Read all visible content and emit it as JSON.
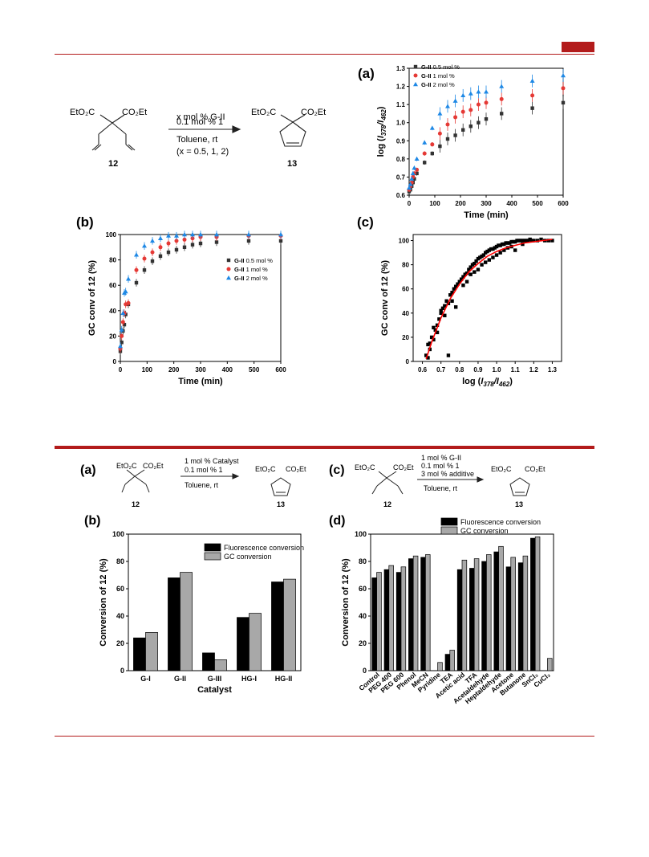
{
  "colors": {
    "rule": "#b31b1b",
    "tab": "#b31b1b",
    "black": "#000000",
    "grey": "#a8a8a8",
    "red": "#e53935",
    "blue": "#1e88e5",
    "dark": "#333333",
    "fit": "#ff0000"
  },
  "scheme1": {
    "reactant": "12",
    "product": "13",
    "lines": [
      "x mol % G-II",
      "0.1 mol % 1",
      "Toluene, rt",
      "(x = 0.5, 1, 2)"
    ],
    "sub_left": "EtO₂C",
    "sub_right": "CO₂Et"
  },
  "scheme2": {
    "panel_a": {
      "label": "(a)",
      "lines": [
        "1 mol % Catalyst",
        "0.1 mol % 1",
        "Toluene, rt"
      ],
      "reactant": "12",
      "product": "13"
    },
    "panel_c": {
      "label": "(c)",
      "lines": [
        "1 mol % G-II",
        "0.1 mol % 1",
        "3 mol % additive",
        "Toluene, rt"
      ],
      "reactant": "12",
      "product": "13"
    }
  },
  "chart_data": [
    {
      "id": "fig1a",
      "panel": "(a)",
      "type": "scatter",
      "xlabel": "Time (min)",
      "ylabel": "log (I378/I462)",
      "xlim": [
        0,
        600
      ],
      "ylim": [
        0.6,
        1.3
      ],
      "xticks": [
        0,
        100,
        200,
        300,
        400,
        500,
        600
      ],
      "yticks": [
        0.6,
        0.7,
        0.8,
        0.9,
        1.0,
        1.1,
        1.2,
        1.3
      ],
      "legend_position": "top-left",
      "series": [
        {
          "name": "G-II 0.5 mol %",
          "marker": "square",
          "color": "#333333",
          "x": [
            0,
            5,
            10,
            15,
            20,
            30,
            60,
            90,
            120,
            150,
            180,
            210,
            240,
            270,
            300,
            360,
            480,
            600
          ],
          "y": [
            0.62,
            0.63,
            0.65,
            0.67,
            0.69,
            0.72,
            0.78,
            0.83,
            0.87,
            0.91,
            0.93,
            0.96,
            0.98,
            1.0,
            1.02,
            1.05,
            1.08,
            1.11
          ]
        },
        {
          "name": "G-II 1 mol %",
          "marker": "circle",
          "color": "#e53935",
          "x": [
            0,
            5,
            10,
            15,
            20,
            30,
            60,
            90,
            120,
            150,
            180,
            210,
            240,
            270,
            300,
            360,
            480,
            600
          ],
          "y": [
            0.63,
            0.65,
            0.67,
            0.7,
            0.72,
            0.74,
            0.83,
            0.88,
            0.94,
            0.99,
            1.03,
            1.06,
            1.07,
            1.1,
            1.11,
            1.13,
            1.15,
            1.19
          ]
        },
        {
          "name": "G-II 2 mol %",
          "marker": "triangle",
          "color": "#1e88e5",
          "x": [
            0,
            5,
            10,
            15,
            20,
            30,
            60,
            90,
            120,
            150,
            180,
            210,
            240,
            270,
            300,
            360,
            480,
            600
          ],
          "y": [
            0.64,
            0.66,
            0.69,
            0.72,
            0.75,
            0.8,
            0.89,
            0.97,
            1.05,
            1.09,
            1.12,
            1.15,
            1.16,
            1.17,
            1.17,
            1.2,
            1.23,
            1.26
          ]
        }
      ]
    },
    {
      "id": "fig1b",
      "panel": "(b)",
      "type": "scatter",
      "xlabel": "Time (min)",
      "ylabel": "GC conv of 12 (%)",
      "xlim": [
        0,
        600
      ],
      "ylim": [
        0,
        100
      ],
      "xticks": [
        0,
        100,
        200,
        300,
        400,
        500,
        600
      ],
      "yticks": [
        0,
        20,
        40,
        60,
        80,
        100
      ],
      "legend_position": "right",
      "series": [
        {
          "name": "G-II 0.5 mol %",
          "marker": "square",
          "color": "#333333",
          "x": [
            0,
            5,
            10,
            15,
            20,
            30,
            60,
            90,
            120,
            150,
            180,
            210,
            240,
            270,
            300,
            360,
            480,
            600
          ],
          "y": [
            8,
            15,
            24,
            29,
            37,
            45,
            62,
            72,
            79,
            83,
            86,
            88,
            90,
            92,
            93,
            94,
            95,
            95
          ]
        },
        {
          "name": "G-II 1 mol %",
          "marker": "circle",
          "color": "#e53935",
          "x": [
            0,
            5,
            10,
            15,
            20,
            30,
            60,
            90,
            120,
            150,
            180,
            210,
            240,
            270,
            300,
            360,
            480,
            600
          ],
          "y": [
            10,
            20,
            31,
            38,
            45,
            46,
            72,
            81,
            86,
            90,
            93,
            95,
            96,
            97,
            98,
            98,
            99,
            99
          ]
        },
        {
          "name": "G-II 2 mol %",
          "marker": "triangle",
          "color": "#1e88e5",
          "x": [
            0,
            5,
            10,
            15,
            20,
            30,
            60,
            90,
            120,
            150,
            180,
            210,
            240,
            270,
            300,
            360,
            480,
            600
          ],
          "y": [
            12,
            25,
            38,
            54,
            55,
            65,
            84,
            91,
            95,
            97,
            99,
            99,
            100,
            100,
            100,
            100,
            100,
            100
          ]
        }
      ]
    },
    {
      "id": "fig1c",
      "panel": "(c)",
      "type": "scatter",
      "xlabel": "log (I378/I462)",
      "ylabel": "GC conv of 12 (%)",
      "xlim": [
        0.55,
        1.35
      ],
      "ylim": [
        0,
        105
      ],
      "xticks": [
        0.6,
        0.7,
        0.8,
        0.9,
        1.0,
        1.1,
        1.2,
        1.3
      ],
      "yticks": [
        0,
        20,
        40,
        60,
        80,
        100
      ],
      "fit_color": "#ff0000",
      "fit": {
        "x": [
          0.62,
          0.65,
          0.7,
          0.75,
          0.8,
          0.85,
          0.9,
          0.95,
          1.0,
          1.05,
          1.1,
          1.15,
          1.2,
          1.25,
          1.3
        ],
        "y": [
          2,
          16,
          36,
          52,
          64,
          74,
          81,
          87,
          91,
          94,
          96,
          98,
          99,
          100,
          101
        ]
      },
      "points": {
        "x": [
          0.62,
          0.63,
          0.63,
          0.64,
          0.65,
          0.66,
          0.66,
          0.67,
          0.68,
          0.69,
          0.7,
          0.71,
          0.72,
          0.73,
          0.74,
          0.75,
          0.76,
          0.77,
          0.78,
          0.79,
          0.8,
          0.81,
          0.82,
          0.83,
          0.84,
          0.85,
          0.86,
          0.87,
          0.88,
          0.89,
          0.9,
          0.91,
          0.92,
          0.93,
          0.94,
          0.95,
          0.96,
          0.97,
          0.98,
          0.99,
          1.0,
          1.01,
          1.02,
          1.03,
          1.04,
          1.05,
          1.06,
          1.07,
          1.08,
          1.09,
          1.1,
          1.11,
          1.12,
          1.13,
          1.14,
          1.15,
          1.16,
          1.17,
          1.18,
          1.19,
          1.2,
          1.22,
          1.24,
          1.26,
          1.28,
          1.3,
          0.64,
          0.68,
          0.72,
          0.74,
          0.78,
          0.82,
          0.86,
          0.9,
          0.94,
          0.98,
          1.02,
          1.06,
          1.1,
          1.14,
          0.7,
          0.76,
          0.84,
          0.88,
          0.92,
          0.96,
          1.0,
          1.04,
          1.08
        ],
        "y": [
          5,
          3,
          14,
          10,
          20,
          28,
          18,
          26,
          30,
          35,
          40,
          44,
          46,
          50,
          48,
          55,
          57,
          60,
          62,
          64,
          66,
          68,
          70,
          72,
          73,
          76,
          78,
          80,
          81,
          83,
          85,
          86,
          87,
          88,
          90,
          91,
          92,
          93,
          93,
          94,
          95,
          96,
          96,
          97,
          97,
          98,
          98,
          98,
          99,
          99,
          99,
          100,
          100,
          100,
          100,
          100,
          100,
          100,
          101,
          100,
          100,
          100,
          101,
          100,
          100,
          100,
          15,
          24,
          38,
          5,
          45,
          63,
          72,
          76,
          82,
          86,
          90,
          94,
          92,
          97,
          42,
          50,
          66,
          74,
          80,
          84,
          88,
          92,
          95
        ]
      }
    },
    {
      "id": "fig2b",
      "panel": "(b)",
      "type": "bar",
      "xlabel": "Catalyst",
      "ylabel": "Conversion of 12 (%)",
      "ylim": [
        0,
        100
      ],
      "yticks": [
        0,
        20,
        40,
        60,
        80,
        100
      ],
      "categories": [
        "G-I",
        "G-II",
        "G-III",
        "HG-I",
        "HG-II"
      ],
      "legend_position": "top-right",
      "series": [
        {
          "name": "Fluorescence conversion",
          "color": "#000000",
          "values": [
            24,
            68,
            13,
            39,
            65
          ]
        },
        {
          "name": "GC conversion",
          "color": "#a8a8a8",
          "values": [
            28,
            72,
            8,
            42,
            67
          ]
        }
      ]
    },
    {
      "id": "fig2d",
      "panel": "(d)",
      "type": "bar",
      "xlabel": "",
      "ylabel": "Conversion of 12 (%)",
      "ylim": [
        0,
        100
      ],
      "yticks": [
        0,
        20,
        40,
        60,
        80,
        100
      ],
      "categories": [
        "Control",
        "PEG 400",
        "PEG 600",
        "Phenol",
        "MeCN",
        "Pyridine",
        "TEA",
        "Acetic acid",
        "TFA",
        "Acetaldehyde",
        "Heptaldehyde",
        "Acetone",
        "Butanone",
        "SnCl₂",
        "CuCl₂"
      ],
      "legend_position": "top",
      "series": [
        {
          "name": "Fluorescence conversion",
          "color": "#000000",
          "values": [
            68,
            74,
            72,
            82,
            83,
            0,
            12,
            74,
            75,
            80,
            87,
            76,
            79,
            97,
            0
          ]
        },
        {
          "name": "GC conversion",
          "color": "#a8a8a8",
          "values": [
            72,
            77,
            76,
            84,
            85,
            6,
            15,
            81,
            82,
            85,
            91,
            83,
            84,
            98,
            9
          ]
        }
      ]
    }
  ]
}
